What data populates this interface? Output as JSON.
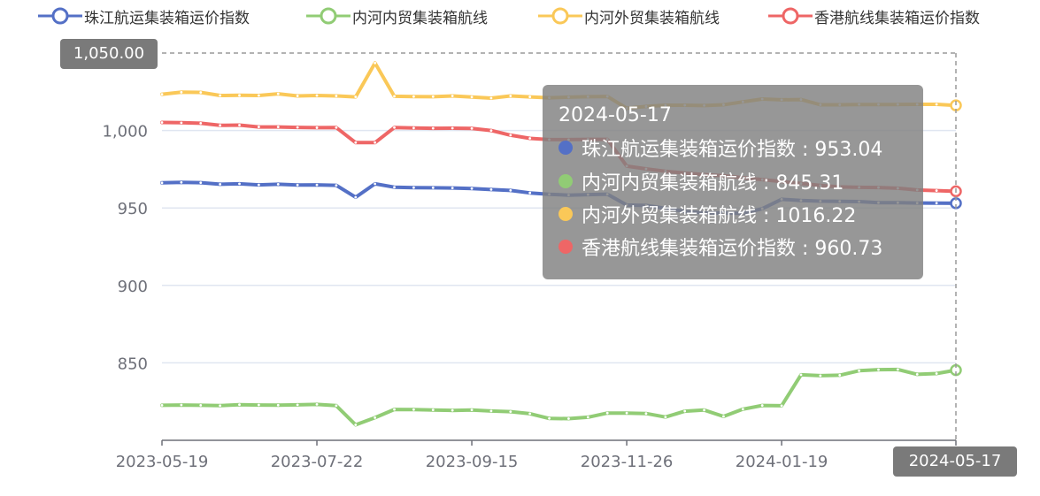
{
  "chart_data": {
    "type": "line",
    "x_ticks": [
      "2023-05-19",
      "2023-07-22",
      "2023-09-15",
      "2023-11-26",
      "2024-01-19",
      "2024-05-17"
    ],
    "y_ticks": [
      "850",
      "900",
      "950",
      "1,000"
    ],
    "ylim": [
      800,
      1050
    ],
    "grid": true,
    "legend_position": "top",
    "series": [
      {
        "name": "珠江航运集装箱运价指数",
        "color": "#5470c6",
        "values": [
          966.2,
          966.5,
          966.3,
          965.3,
          965.6,
          964.9,
          965.3,
          964.8,
          964.9,
          964.6,
          956.9,
          965.6,
          963.4,
          963.1,
          963.0,
          962.9,
          962.5,
          961.9,
          961.3,
          959.7,
          958.8,
          958.3,
          958.6,
          958.9,
          951.9,
          951.6,
          949.8,
          947.8,
          946.8,
          946.7,
          946.5,
          949.5,
          955.6,
          954.8,
          954.4,
          954.3,
          954.1,
          953.4,
          953.4,
          953.2,
          953.1,
          953.04
        ]
      },
      {
        "name": "内河内贸集装箱航线",
        "color": "#91cc75",
        "values": [
          822.6,
          822.8,
          822.6,
          822.4,
          823.0,
          822.8,
          822.7,
          822.9,
          823.2,
          822.4,
          810.0,
          814.6,
          819.9,
          819.8,
          819.6,
          819.3,
          819.6,
          818.9,
          818.5,
          817.2,
          814.1,
          814.0,
          814.9,
          817.6,
          817.6,
          817.3,
          815.0,
          818.8,
          819.5,
          815.4,
          820.1,
          822.5,
          822.3,
          842.3,
          841.7,
          842.0,
          844.9,
          845.6,
          845.7,
          842.6,
          843.1,
          845.31
        ]
      },
      {
        "name": "内河外贸集装箱航线",
        "color": "#fac858",
        "values": [
          1023.4,
          1024.7,
          1024.6,
          1022.6,
          1022.7,
          1022.6,
          1023.7,
          1022.3,
          1022.6,
          1022.3,
          1021.7,
          1043.6,
          1022.1,
          1021.9,
          1021.8,
          1022.3,
          1021.6,
          1020.9,
          1022.3,
          1021.7,
          1021.1,
          1021.5,
          1021.8,
          1022.0,
          1014.4,
          1015.5,
          1016.3,
          1016.3,
          1016.1,
          1016.6,
          1018.5,
          1020.3,
          1019.8,
          1020.0,
          1016.6,
          1016.6,
          1016.8,
          1016.8,
          1016.8,
          1016.9,
          1016.9,
          1016.22
        ]
      },
      {
        "name": "香港航线集装箱运价指数",
        "color": "#ee6666",
        "values": [
          1005.2,
          1005.0,
          1004.7,
          1003.3,
          1003.5,
          1002.3,
          1002.3,
          1002.0,
          1001.8,
          1001.9,
          992.2,
          992.2,
          1001.9,
          1001.6,
          1001.4,
          1001.5,
          1001.3,
          1000.0,
          997.0,
          994.9,
          994.1,
          994.1,
          994.3,
          994.3,
          977.0,
          975.2,
          973.7,
          972.5,
          971.5,
          970.8,
          969.5,
          968.3,
          967.0,
          965.8,
          964.5,
          963.6,
          963.3,
          963.2,
          962.7,
          961.6,
          961.2,
          960.73
        ]
      }
    ]
  },
  "tooltip": {
    "date": "2024-05-17",
    "rows": [
      "珠江航运集装箱运价指数 : 953.04",
      "内河内贸集装箱航线 : 845.31",
      "内河外贸集装箱航线 : 1016.22",
      "香港航线集装箱运价指数 : 960.73"
    ]
  },
  "axis_pointer": {
    "y_label": "1,050.00",
    "x_label": "2024-05-17"
  }
}
